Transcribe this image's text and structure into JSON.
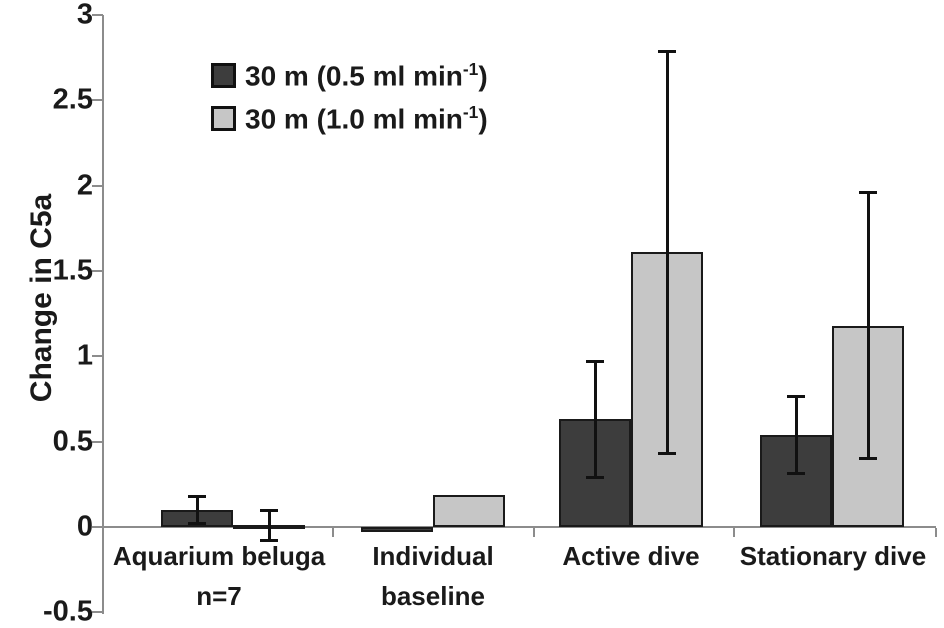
{
  "figure": {
    "ylabel": "Change in C5a"
  },
  "legend": {
    "items": [
      {
        "label": "30 m (0.5 ml min⁻¹)",
        "prefix": "30 m (0.5 ml min",
        "sup": "-1",
        "suffix": ")",
        "color": "#3d3d3d"
      },
      {
        "label": "30 m (1.0 ml min⁻¹)",
        "prefix": "30 m (1.0 ml min",
        "sup": "-1",
        "suffix": ")",
        "color": "#c6c6c6"
      }
    ]
  },
  "chart_data": {
    "type": "bar",
    "title": "",
    "xlabel": "",
    "ylabel": "Change in C5a",
    "ylim": [
      -0.5,
      3
    ],
    "ytick_step": 0.5,
    "yticks": [
      3,
      2.5,
      2,
      1.5,
      1,
      0.5,
      0,
      -0.5
    ],
    "yticks_display": [
      "3",
      "2.5",
      "2",
      "1.5",
      "1",
      "0.5",
      "0",
      "-0.5"
    ],
    "grid": false,
    "legend_position": "upper-left",
    "categories": [
      "Aquarium beluga n=7",
      "Individual baseline",
      "Active dive",
      "Stationary dive"
    ],
    "category_label_lines": [
      [
        "Aquarium beluga",
        "n=7"
      ],
      [
        "Individual",
        "baseline"
      ],
      [
        "Active dive"
      ],
      [
        "Stationary dive"
      ]
    ],
    "series": [
      {
        "name": "30 m (0.5 ml min⁻¹)",
        "color": "#3d3d3d",
        "values": [
          0.1,
          -0.03,
          0.63,
          0.54
        ],
        "errors": [
          0.08,
          null,
          0.34,
          0.23
        ]
      },
      {
        "name": "30 m (1.0 ml min⁻¹)",
        "color": "#c6c6c6",
        "values": [
          0.01,
          0.19,
          1.61,
          1.18
        ],
        "errors": [
          0.09,
          null,
          1.18,
          0.78
        ]
      }
    ],
    "axis_color": "#8c8c8c",
    "bar_outline_color": "#1a1a1a",
    "error_bar_color": "#111111"
  }
}
